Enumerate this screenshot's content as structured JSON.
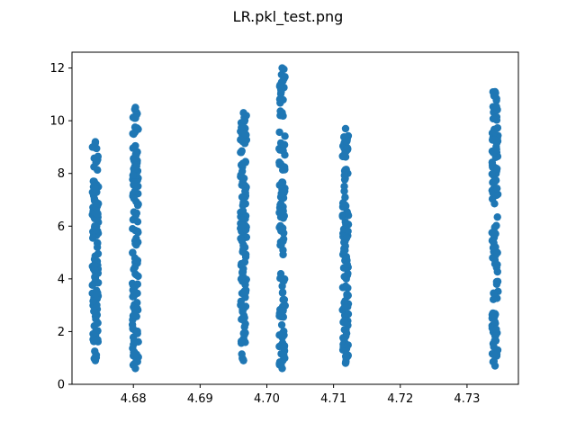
{
  "chart_data": {
    "type": "scatter",
    "title": "LR.pkl_test.png",
    "xlabel": "",
    "ylabel": "",
    "xlim": [
      4.6708,
      4.7377
    ],
    "ylim": [
      0,
      12.6
    ],
    "xticks": [
      4.68,
      4.69,
      4.7,
      4.71,
      4.72,
      4.73
    ],
    "xtick_labels": [
      "4.68",
      "4.69",
      "4.70",
      "4.71",
      "4.72",
      "4.73"
    ],
    "yticks": [
      0,
      2,
      4,
      6,
      8,
      10,
      12
    ],
    "ytick_labels": [
      "0",
      "2",
      "4",
      "6",
      "8",
      "10",
      "12"
    ],
    "grid": false,
    "legend": "none",
    "point_color": "#1f77b4",
    "clusters": [
      {
        "x": 4.6743,
        "ymin": 0.9,
        "ymax": 9.2
      },
      {
        "x": 4.6803,
        "ymin": 0.6,
        "ymax": 10.5
      },
      {
        "x": 4.6965,
        "ymin": 0.9,
        "ymax": 10.3
      },
      {
        "x": 4.7023,
        "ymin": 0.6,
        "ymax": 12.0
      },
      {
        "x": 4.7118,
        "ymin": 0.8,
        "ymax": 9.7
      },
      {
        "x": 4.7342,
        "ymin": 0.7,
        "ymax": 11.1
      }
    ]
  }
}
